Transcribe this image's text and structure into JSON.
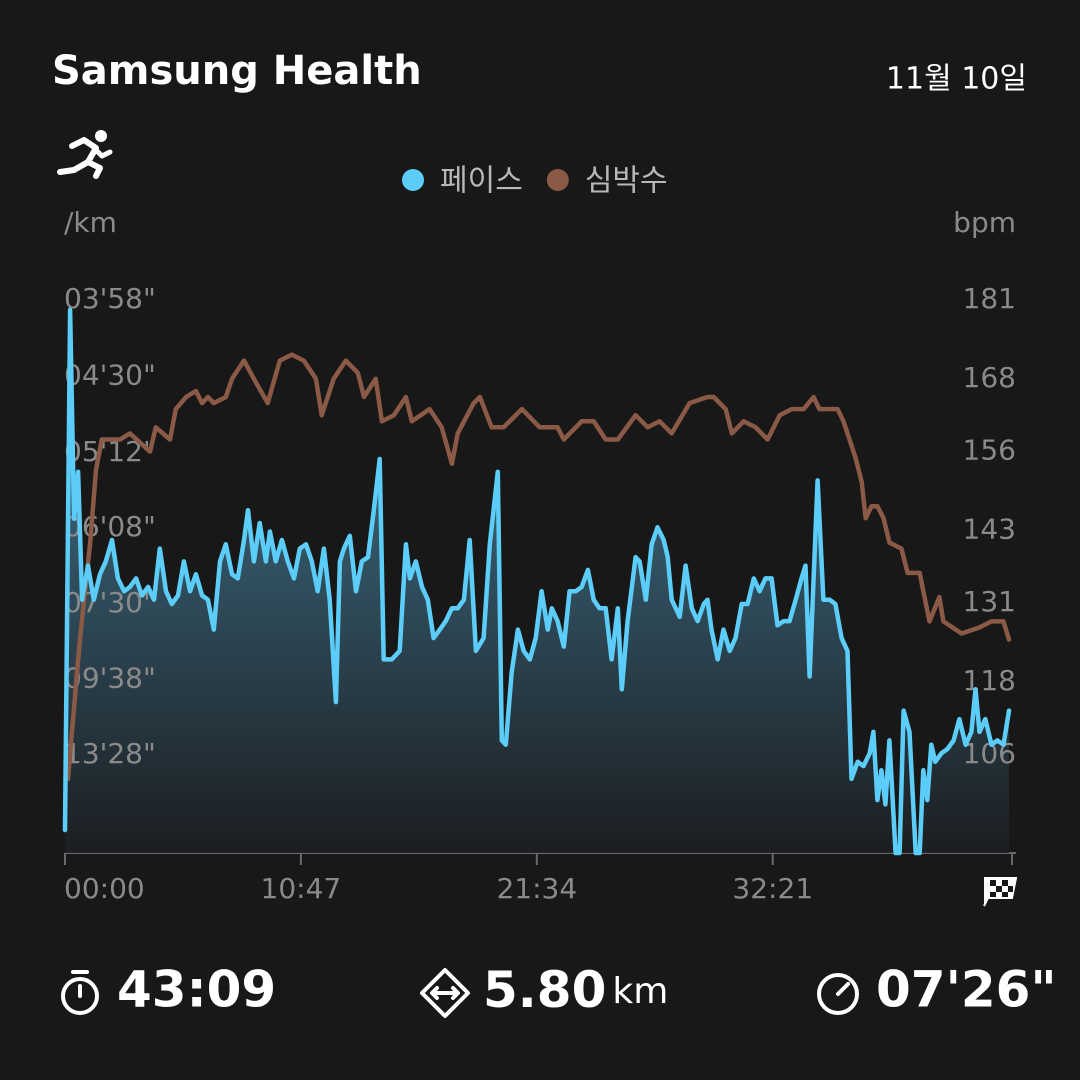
{
  "app_title": "Samsung Health",
  "date": "11월 10일",
  "chart_data": {
    "type": "line",
    "ylabel": "/km",
    "y2label": "bpm",
    "xlim": [
      0,
      2589
    ],
    "xticks": [
      {
        "value": 0,
        "label": "00:00"
      },
      {
        "value": 647,
        "label": "10:47"
      },
      {
        "value": 1294,
        "label": "21:34"
      },
      {
        "value": 1941,
        "label": "32:21"
      }
    ],
    "ylim": [
      2.16,
      15.13
    ],
    "yticks": [
      {
        "value": 15.13,
        "label": "03'58\""
      },
      {
        "value": 13.33,
        "label": "04'30\""
      },
      {
        "value": 11.54,
        "label": "05'12\""
      },
      {
        "value": 9.78,
        "label": "06'08\""
      },
      {
        "value": 8.0,
        "label": "07'30\""
      },
      {
        "value": 6.23,
        "label": "09'38\""
      },
      {
        "value": 4.46,
        "label": "13'28\""
      }
    ],
    "y2lim": [
      89.8,
      181
    ],
    "y2ticks": [
      181,
      168,
      156,
      143,
      131,
      118,
      106
    ],
    "grid": false,
    "legend": "top",
    "series": [
      {
        "name": "페이스",
        "color": "#5ccdf8",
        "axis": "y",
        "fill": true,
        "x": [
          0,
          14,
          25,
          36,
          47,
          63,
          79,
          96,
          112,
          129,
          145,
          162,
          178,
          195,
          211,
          228,
          244,
          260,
          277,
          293,
          310,
          326,
          343,
          359,
          376,
          392,
          408,
          425,
          441,
          458,
          474,
          491,
          502,
          518,
          534,
          551,
          562,
          578,
          595,
          611,
          628,
          644,
          661,
          677,
          693,
          710,
          726,
          743,
          754,
          765,
          781,
          798,
          814,
          831,
          847,
          863,
          874,
          896,
          918,
          935,
          946,
          962,
          979,
          995,
          1011,
          1028,
          1044,
          1061,
          1077,
          1094,
          1110,
          1127,
          1148,
          1165,
          1187,
          1198,
          1209,
          1225,
          1242,
          1258,
          1275,
          1291,
          1307,
          1324,
          1335,
          1351,
          1368,
          1384,
          1401,
          1417,
          1434,
          1450,
          1466,
          1483,
          1499,
          1516,
          1527,
          1543,
          1565,
          1576,
          1593,
          1609,
          1625,
          1642,
          1653,
          1664,
          1686,
          1702,
          1719,
          1735,
          1752,
          1762,
          1773,
          1790,
          1806,
          1823,
          1839,
          1856,
          1872,
          1889,
          1905,
          1921,
          1938,
          1954,
          1971,
          1987,
          2004,
          2020,
          2031,
          2042,
          2064,
          2080,
          2097,
          2113,
          2130,
          2146,
          2157,
          2174,
          2190,
          2207,
          2217,
          2228,
          2239,
          2250,
          2261,
          2278,
          2289,
          2300,
          2316,
          2333,
          2344,
          2354,
          2365,
          2376,
          2387,
          2404,
          2420,
          2437,
          2453,
          2470,
          2486,
          2497,
          2508,
          2524,
          2541,
          2557,
          2574,
          2589
        ],
        "values": [
          2.7,
          14.9,
          10.0,
          11.1,
          8.1,
          8.9,
          8.1,
          8.7,
          9.0,
          9.5,
          8.6,
          8.3,
          8.4,
          8.6,
          8.2,
          8.4,
          8.1,
          9.3,
          8.3,
          8.0,
          8.2,
          9.0,
          8.3,
          8.7,
          8.2,
          8.1,
          7.4,
          9.0,
          9.4,
          8.7,
          8.6,
          9.5,
          10.2,
          9.0,
          9.9,
          9.0,
          9.7,
          9.0,
          9.5,
          9.0,
          8.6,
          9.3,
          9.4,
          9.0,
          8.3,
          9.3,
          8.1,
          5.7,
          9.0,
          9.3,
          9.6,
          8.3,
          9.0,
          9.1,
          10.2,
          11.4,
          6.7,
          6.7,
          6.9,
          9.4,
          8.6,
          9.0,
          8.4,
          8.1,
          7.2,
          7.4,
          7.6,
          7.9,
          7.9,
          8.1,
          9.5,
          6.9,
          7.2,
          9.4,
          11.1,
          4.8,
          4.7,
          6.4,
          7.4,
          6.9,
          6.7,
          7.2,
          8.3,
          7.4,
          7.9,
          7.6,
          7.0,
          8.3,
          8.3,
          8.4,
          8.8,
          8.1,
          7.9,
          7.9,
          6.7,
          7.9,
          6.0,
          7.6,
          9.1,
          9.0,
          8.1,
          9.4,
          9.8,
          9.5,
          9.1,
          8.1,
          7.7,
          8.9,
          7.9,
          7.6,
          8.0,
          8.1,
          7.4,
          6.7,
          7.4,
          6.9,
          7.2,
          8.0,
          8.0,
          8.6,
          8.3,
          8.6,
          8.6,
          7.5,
          7.6,
          7.6,
          8.1,
          8.6,
          8.9,
          6.3,
          10.9,
          8.1,
          8.1,
          8.0,
          7.2,
          6.9,
          3.9,
          4.3,
          4.2,
          4.5,
          5.0,
          3.4,
          4.1,
          3.3,
          4.8,
          2.16,
          2.16,
          5.5,
          5.0,
          2.16,
          2.16,
          4.1,
          3.4,
          4.7,
          4.3,
          4.5,
          4.6,
          4.8,
          5.3,
          4.7,
          5.0,
          6.0,
          5.0,
          5.3,
          4.7,
          4.8,
          4.7,
          5.5
        ]
      },
      {
        "name": "심박수",
        "color": "#8b5a47",
        "axis": "y2",
        "x": [
          8,
          41,
          69,
          85,
          101,
          151,
          178,
          233,
          249,
          288,
          304,
          332,
          359,
          376,
          392,
          408,
          441,
          458,
          491,
          518,
          556,
          589,
          622,
          655,
          688,
          704,
          737,
          770,
          803,
          820,
          852,
          869,
          902,
          935,
          951,
          1000,
          1033,
          1061,
          1077,
          1121,
          1138,
          1170,
          1203,
          1253,
          1302,
          1351,
          1368,
          1417,
          1450,
          1483,
          1516,
          1565,
          1598,
          1631,
          1664,
          1713,
          1762,
          1779,
          1812,
          1829,
          1861,
          1894,
          1927,
          1960,
          1993,
          2026,
          2053,
          2069,
          2119,
          2135,
          2168,
          2185,
          2196,
          2212,
          2228,
          2245,
          2261,
          2294,
          2311,
          2344,
          2354,
          2371,
          2398,
          2409,
          2459,
          2508,
          2541,
          2574,
          2589
        ],
        "values": [
          102,
          125,
          141,
          153,
          158,
          158,
          159,
          156,
          160,
          158,
          163,
          165,
          166,
          164,
          165,
          164,
          165,
          168,
          171,
          168,
          164,
          171,
          172,
          171,
          168,
          162,
          168,
          171,
          169,
          165,
          168,
          161,
          162,
          165,
          161,
          163,
          160,
          154,
          159,
          164,
          165,
          160,
          160,
          163,
          160,
          160,
          158,
          161,
          161,
          158,
          158,
          162,
          160,
          161,
          159,
          164,
          165,
          165,
          163,
          159,
          161,
          160,
          158,
          162,
          163,
          163,
          165,
          163,
          163,
          161,
          155,
          151,
          145,
          147,
          147,
          145,
          141,
          140,
          136,
          136,
          133,
          128,
          132,
          128,
          126,
          127,
          128,
          128,
          125
        ]
      }
    ]
  },
  "stats": {
    "duration": "43:09",
    "distance": "5.80",
    "distance_unit": "km",
    "pace": "07'26\""
  }
}
